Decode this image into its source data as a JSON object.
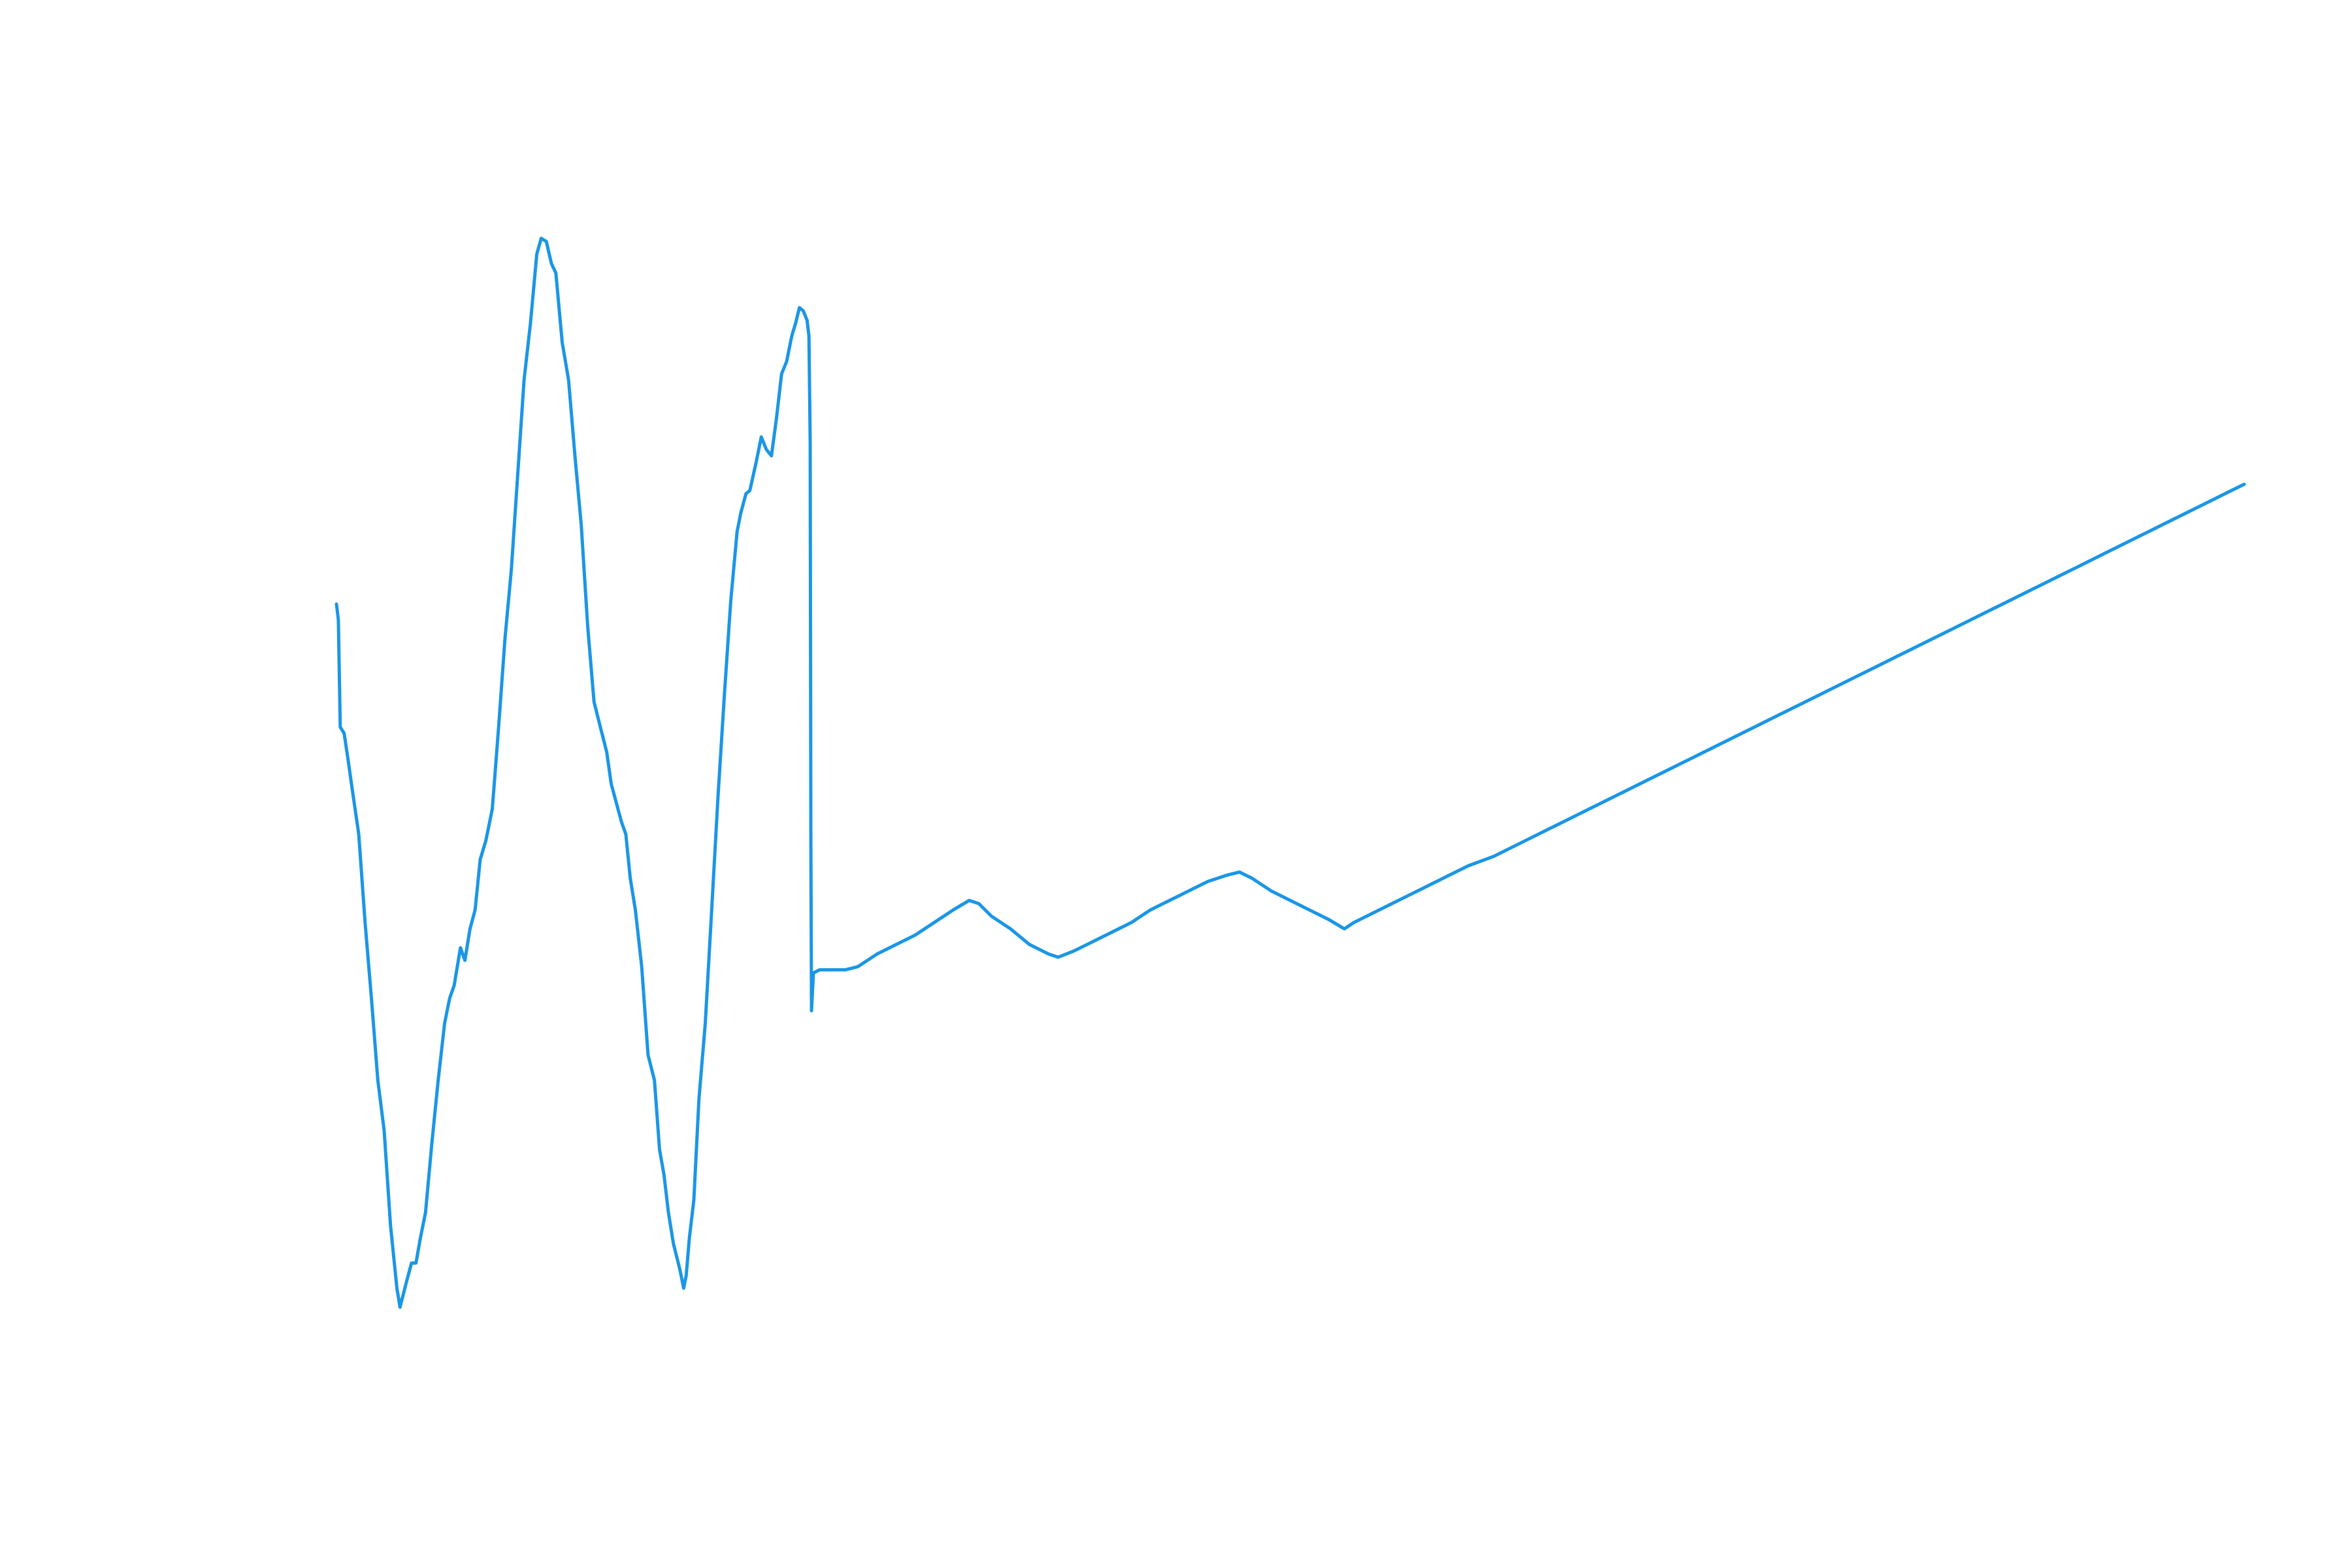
{
  "chart_data": {
    "type": "line",
    "title": "",
    "xlabel": "",
    "ylabel": "",
    "axes_visible": false,
    "grid": false,
    "legend": "none",
    "xlim": [
      0,
      3000
    ],
    "ylim": [
      -0.5,
      1.8
    ],
    "series": [
      {
        "color": "#1a96e6",
        "points": [
          [
            0,
            0.925
          ],
          [
            3,
            0.9
          ],
          [
            6,
            0.73
          ],
          [
            12,
            0.72
          ],
          [
            18,
            0.68
          ],
          [
            25,
            0.63
          ],
          [
            35,
            0.56
          ],
          [
            45,
            0.42
          ],
          [
            55,
            0.3
          ],
          [
            65,
            0.17
          ],
          [
            75,
            0.09
          ],
          [
            85,
            -0.06
          ],
          [
            95,
            -0.16
          ],
          [
            100,
            -0.19
          ],
          [
            105,
            -0.17
          ],
          [
            110,
            -0.15
          ],
          [
            118,
            -0.12
          ],
          [
            125,
            -0.12
          ],
          [
            132,
            -0.08
          ],
          [
            140,
            -0.04
          ],
          [
            150,
            0.07
          ],
          [
            160,
            0.17
          ],
          [
            170,
            0.26
          ],
          [
            178,
            0.3
          ],
          [
            185,
            0.32
          ],
          [
            195,
            0.38
          ],
          [
            202,
            0.36
          ],
          [
            210,
            0.41
          ],
          [
            218,
            0.44
          ],
          [
            226,
            0.52
          ],
          [
            235,
            0.55
          ],
          [
            245,
            0.6
          ],
          [
            255,
            0.73
          ],
          [
            265,
            0.87
          ],
          [
            275,
            0.98
          ],
          [
            285,
            1.13
          ],
          [
            295,
            1.28
          ],
          [
            305,
            1.37
          ],
          [
            315,
            1.48
          ],
          [
            322,
            1.505
          ],
          [
            330,
            1.5
          ],
          [
            338,
            1.465
          ],
          [
            345,
            1.45
          ],
          [
            355,
            1.34
          ],
          [
            365,
            1.28
          ],
          [
            375,
            1.16
          ],
          [
            385,
            1.05
          ],
          [
            395,
            0.89
          ],
          [
            405,
            0.77
          ],
          [
            415,
            0.73
          ],
          [
            425,
            0.69
          ],
          [
            432,
            0.64
          ],
          [
            440,
            0.61
          ],
          [
            448,
            0.58
          ],
          [
            455,
            0.56
          ],
          [
            462,
            0.49
          ],
          [
            470,
            0.44
          ],
          [
            480,
            0.35
          ],
          [
            490,
            0.21
          ],
          [
            500,
            0.17
          ],
          [
            508,
            0.06
          ],
          [
            515,
            0.02
          ],
          [
            522,
            -0.04
          ],
          [
            530,
            -0.09
          ],
          [
            540,
            -0.13
          ],
          [
            546,
            -0.16
          ],
          [
            550,
            -0.14
          ],
          [
            555,
            -0.08
          ],
          [
            562,
            -0.02
          ],
          [
            570,
            0.14
          ],
          [
            580,
            0.26
          ],
          [
            590,
            0.44
          ],
          [
            600,
            0.62
          ],
          [
            610,
            0.78
          ],
          [
            620,
            0.93
          ],
          [
            630,
            1.04
          ],
          [
            636,
            1.07
          ],
          [
            644,
            1.1
          ],
          [
            650,
            1.105
          ],
          [
            660,
            1.15
          ],
          [
            668,
            1.19
          ],
          [
            676,
            1.17
          ],
          [
            684,
            1.16
          ],
          [
            692,
            1.22
          ],
          [
            700,
            1.29
          ],
          [
            708,
            1.31
          ],
          [
            716,
            1.35
          ],
          [
            722,
            1.37
          ],
          [
            728,
            1.395
          ],
          [
            734,
            1.39
          ],
          [
            740,
            1.375
          ],
          [
            743,
            1.35
          ],
          [
            745,
            1.18
          ],
          [
            746,
            0.55
          ],
          [
            747,
            0.28
          ],
          [
            750,
            0.34
          ],
          [
            760,
            0.345
          ],
          [
            775,
            0.345
          ],
          [
            800,
            0.345
          ],
          [
            820,
            0.35
          ],
          [
            850,
            0.37
          ],
          [
            880,
            0.385
          ],
          [
            910,
            0.4
          ],
          [
            940,
            0.42
          ],
          [
            970,
            0.44
          ],
          [
            995,
            0.455
          ],
          [
            1010,
            0.45
          ],
          [
            1030,
            0.43
          ],
          [
            1060,
            0.41
          ],
          [
            1090,
            0.385
          ],
          [
            1120,
            0.37
          ],
          [
            1135,
            0.365
          ],
          [
            1160,
            0.375
          ],
          [
            1190,
            0.39
          ],
          [
            1220,
            0.405
          ],
          [
            1250,
            0.42
          ],
          [
            1280,
            0.44
          ],
          [
            1310,
            0.455
          ],
          [
            1340,
            0.47
          ],
          [
            1370,
            0.485
          ],
          [
            1400,
            0.495
          ],
          [
            1420,
            0.5
          ],
          [
            1440,
            0.49
          ],
          [
            1470,
            0.47
          ],
          [
            1500,
            0.455
          ],
          [
            1530,
            0.44
          ],
          [
            1560,
            0.425
          ],
          [
            1585,
            0.41
          ],
          [
            1600,
            0.42
          ],
          [
            1630,
            0.435
          ],
          [
            1660,
            0.45
          ],
          [
            1700,
            0.47
          ],
          [
            1740,
            0.49
          ],
          [
            1780,
            0.51
          ],
          [
            1820,
            0.525
          ],
          [
            1860,
            0.545
          ],
          [
            1900,
            0.565
          ],
          [
            1940,
            0.585
          ],
          [
            1980,
            0.605
          ],
          [
            2020,
            0.625
          ],
          [
            2060,
            0.645
          ],
          [
            2100,
            0.665
          ],
          [
            2140,
            0.685
          ],
          [
            2180,
            0.705
          ],
          [
            2220,
            0.725
          ],
          [
            2260,
            0.745
          ],
          [
            2300,
            0.765
          ],
          [
            2340,
            0.785
          ],
          [
            2380,
            0.805
          ],
          [
            2420,
            0.825
          ],
          [
            2460,
            0.845
          ],
          [
            2500,
            0.865
          ],
          [
            2540,
            0.885
          ],
          [
            2580,
            0.905
          ],
          [
            2620,
            0.925
          ],
          [
            2660,
            0.945
          ],
          [
            2700,
            0.965
          ],
          [
            2740,
            0.985
          ],
          [
            2780,
            1.005
          ],
          [
            2820,
            1.025
          ],
          [
            2860,
            1.045
          ],
          [
            2900,
            1.065
          ],
          [
            2940,
            1.085
          ],
          [
            2980,
            1.105
          ],
          [
            3000,
            1.115
          ]
        ]
      }
    ]
  }
}
